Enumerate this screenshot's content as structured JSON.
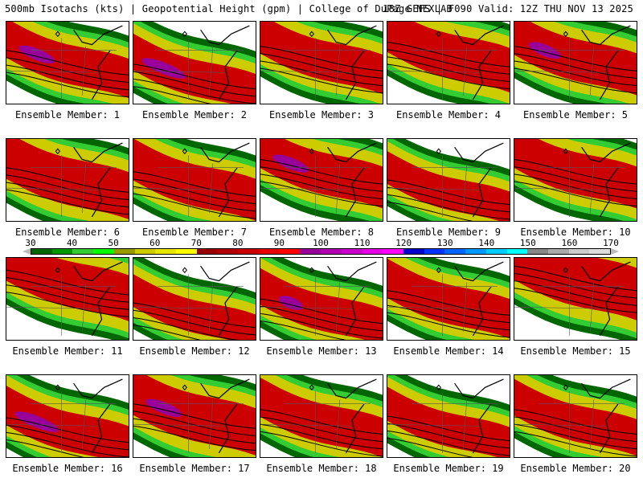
{
  "header": {
    "title_left": "500mb Isotachs (kts) | Geopotential Height (gpm) | College of DuPage NEXLAB",
    "title_right": "18Z GEFS | F090 Valid: 12Z THU NOV 13 2025"
  },
  "panels": [
    {
      "label": "Ensemble Member: 1",
      "jet": 0.55,
      "width": 0.3,
      "purple": 0.45
    },
    {
      "label": "Ensemble Member: 2",
      "jet": 0.72,
      "width": 0.28,
      "purple": 0.55
    },
    {
      "label": "Ensemble Member: 3",
      "jet": 0.5,
      "width": 0.3,
      "purple": 0.0
    },
    {
      "label": "Ensemble Member: 4",
      "jet": 0.45,
      "width": 0.34,
      "purple": 0.0
    },
    {
      "label": "Ensemble Member: 5",
      "jet": 0.5,
      "width": 0.32,
      "purple": 0.4
    },
    {
      "label": "Ensemble Member: 6",
      "jet": 0.55,
      "width": 0.36,
      "purple": 0.0
    },
    {
      "label": "Ensemble Member: 7",
      "jet": 0.6,
      "width": 0.32,
      "purple": 0.0
    },
    {
      "label": "Ensemble Member: 8",
      "jet": 0.45,
      "width": 0.32,
      "purple": 0.45
    },
    {
      "label": "Ensemble Member: 9",
      "jet": 0.7,
      "width": 0.25,
      "purple": 0.0
    },
    {
      "label": "Ensemble Member: 10",
      "jet": 0.45,
      "width": 0.32,
      "purple": 0.0
    },
    {
      "label": "Ensemble Member: 11",
      "jet": 0.35,
      "width": 0.35,
      "purple": 0.0
    },
    {
      "label": "Ensemble Member: 12",
      "jet": 0.75,
      "width": 0.25,
      "purple": 0.0
    },
    {
      "label": "Ensemble Member: 13",
      "jet": 0.7,
      "width": 0.28,
      "purple": 0.3
    },
    {
      "label": "Ensemble Member: 14",
      "jet": 0.6,
      "width": 0.3,
      "purple": 0.0
    },
    {
      "label": "Ensemble Member: 15",
      "jet": 0.3,
      "width": 0.4,
      "purple": 0.0
    },
    {
      "label": "Ensemble Member: 16",
      "jet": 0.72,
      "width": 0.3,
      "purple": 0.55
    },
    {
      "label": "Ensemble Member: 17",
      "jet": 0.55,
      "width": 0.36,
      "purple": 0.45
    },
    {
      "label": "Ensemble Member: 18",
      "jet": 0.62,
      "width": 0.3,
      "purple": 0.0
    },
    {
      "label": "Ensemble Member: 19",
      "jet": 0.7,
      "width": 0.26,
      "purple": 0.0
    },
    {
      "label": "Ensemble Member: 20",
      "jet": 0.62,
      "width": 0.28,
      "purple": 0.0
    }
  ],
  "colorbar": {
    "labels": [
      "30",
      "40",
      "50",
      "60",
      "70",
      "80",
      "90",
      "100",
      "110",
      "120",
      "130",
      "140",
      "150",
      "160",
      "170"
    ],
    "colors": [
      "#006600",
      "#009900",
      "#33cc33",
      "#00ff00",
      "#999900",
      "#cccc00",
      "#e6e600",
      "#ffff00",
      "#990000",
      "#b30000",
      "#cc0000",
      "#e60000",
      "#ff0000",
      "#990099",
      "#b300b3",
      "#cc00cc",
      "#e600e6",
      "#ff00ff",
      "#0000cc",
      "#0033ff",
      "#0066ff",
      "#0099ff",
      "#00ccff",
      "#00ffff",
      "#888888",
      "#aaaaaa",
      "#cccccc",
      "#dddddd"
    ]
  }
}
